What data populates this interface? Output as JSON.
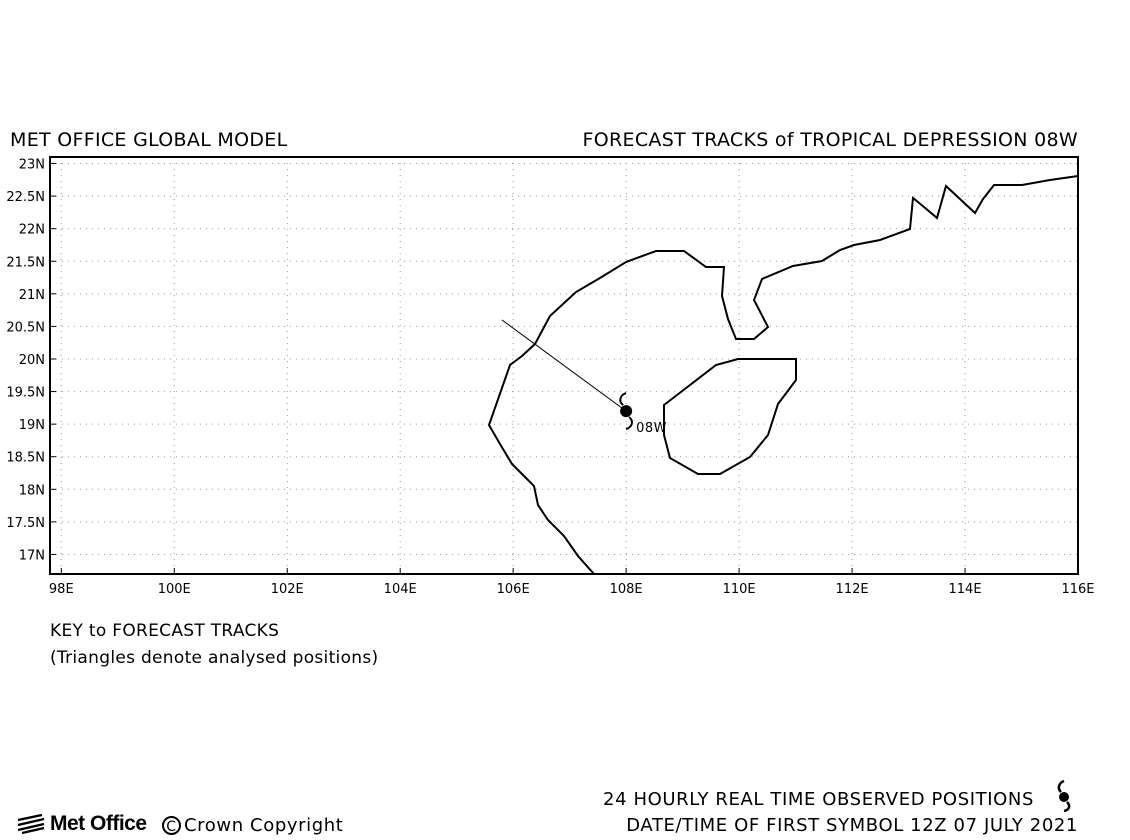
{
  "header": {
    "title_left": "MET OFFICE GLOBAL MODEL",
    "title_right": "FORECAST TRACKS of TROPICAL DEPRESSION 08W"
  },
  "map": {
    "lon_range": [
      97.8,
      116.0
    ],
    "lat_range": [
      16.7,
      23.1
    ],
    "grid": "dotted",
    "lat_ticks": [
      "23N",
      "22.5N",
      "22N",
      "21.5N",
      "21N",
      "20.5N",
      "20N",
      "19.5N",
      "19N",
      "18.5N",
      "18N",
      "17.5N",
      "17N"
    ],
    "lon_ticks": [
      "98E",
      "100E",
      "102E",
      "104E",
      "106E",
      "108E",
      "110E",
      "112E",
      "114E",
      "116E"
    ],
    "storm": {
      "label": "08W",
      "position": {
        "lon": 108.0,
        "lat": 19.2
      },
      "symbol": "tropical-cyclone-symbol",
      "track_start": {
        "lon": 105.8,
        "lat": 20.6
      }
    }
  },
  "key": {
    "title": "KEY to FORECAST TRACKS",
    "note": "(Triangles denote analysed positions)"
  },
  "footer": {
    "observed_label": "24 HOURLY REAL TIME OBSERVED POSITIONS",
    "date_label": "DATE/TIME OF FIRST SYMBOL 12Z 07 JULY 2021",
    "logo_name": "Met Office",
    "copyright": "Crown Copyright",
    "copyright_symbol": "C"
  }
}
